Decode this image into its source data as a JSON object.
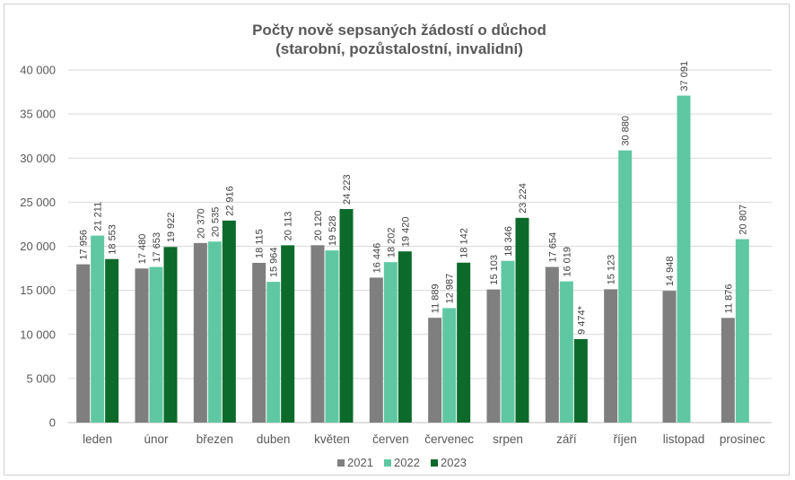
{
  "chart_data": {
    "type": "bar",
    "title": "Počty nově sepsaných žádostí o důchod",
    "subtitle": "(starobní, pozůstalostní, invalidní)",
    "categories": [
      "leden",
      "únor",
      "březen",
      "duben",
      "květen",
      "červen",
      "červenec",
      "srpen",
      "září",
      "říjen",
      "listopad",
      "prosinec"
    ],
    "series": [
      {
        "name": "2021",
        "color": "#7f7f7f",
        "values": [
          17956,
          17480,
          20370,
          18115,
          20120,
          16446,
          11889,
          15103,
          17654,
          15123,
          14948,
          11876
        ],
        "labels": [
          "17 956",
          "17 480",
          "20 370",
          "18 115",
          "20 120",
          "16 446",
          "11 889",
          "15 103",
          "17 654",
          "15 123",
          "14 948",
          "11 876"
        ]
      },
      {
        "name": "2022",
        "color": "#5fc8a3",
        "values": [
          21211,
          17653,
          20535,
          15964,
          19528,
          18202,
          12987,
          18346,
          16019,
          30880,
          37091,
          20807
        ],
        "labels": [
          "21 211",
          "17 653",
          "20 535",
          "15 964",
          "19 528",
          "18 202",
          "12 987",
          "18 346",
          "16 019",
          "30 880",
          "37 091",
          "20 807"
        ]
      },
      {
        "name": "2023",
        "color": "#0c6a2b",
        "values": [
          18553,
          19922,
          22916,
          20113,
          24223,
          19420,
          18142,
          23224,
          9474,
          null,
          null,
          null
        ],
        "labels": [
          "18 553",
          "19 922",
          "22 916",
          "20 113",
          "24 223",
          "19 420",
          "18 142",
          "23 224",
          "9 474*",
          null,
          null,
          null
        ]
      }
    ],
    "ylim": [
      0,
      40000
    ],
    "yticks": [
      0,
      5000,
      10000,
      15000,
      20000,
      25000,
      30000,
      35000,
      40000
    ],
    "ytick_labels": [
      "0",
      "5 000",
      "10 000",
      "15 000",
      "20 000",
      "25 000",
      "30 000",
      "35 000",
      "40 000"
    ],
    "grid": true,
    "legend_position": "bottom"
  }
}
